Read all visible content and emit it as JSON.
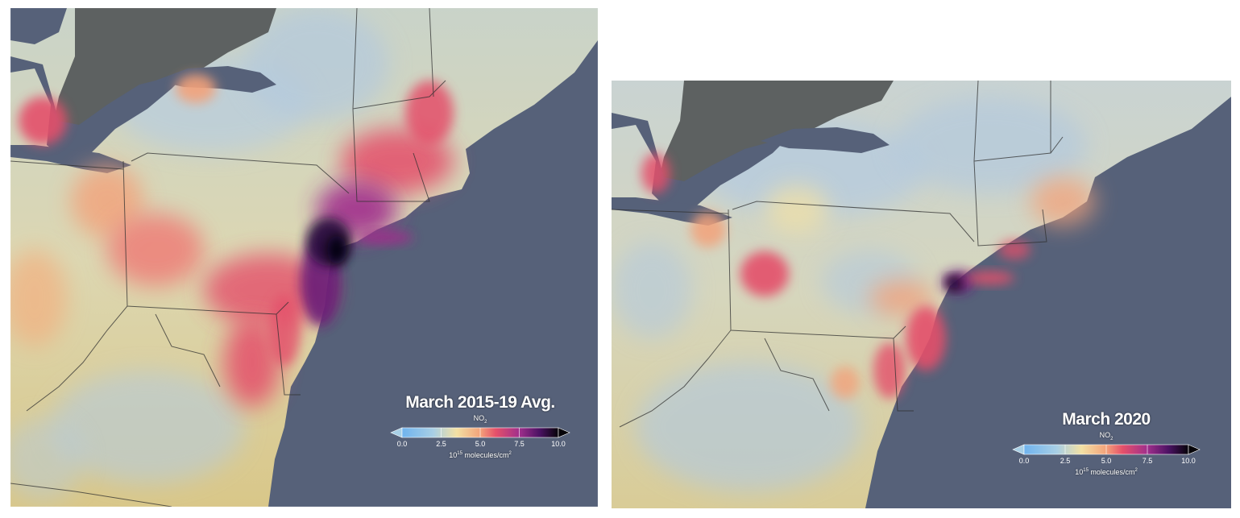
{
  "panels": [
    {
      "id": "left",
      "title": "March 2015-19 Avg.",
      "variable": "NO",
      "variable_subscript": "2",
      "units_prefix": "10",
      "units_exponent": "15",
      "units_suffix": " molecules/cm",
      "units_suffix_exponent": "2",
      "colorbar_ticks": [
        "0.0",
        "2.5",
        "5.0",
        "7.5",
        "10.0"
      ]
    },
    {
      "id": "right",
      "title": "March 2020",
      "variable": "NO",
      "variable_subscript": "2",
      "units_prefix": "10",
      "units_exponent": "15",
      "units_suffix": " molecules/cm",
      "units_suffix_exponent": "2",
      "colorbar_ticks": [
        "0.0",
        "2.5",
        "5.0",
        "7.5",
        "10.0"
      ]
    }
  ],
  "colors": {
    "ocean": "#566179",
    "land_low": "#d8d6b8",
    "canada_land": "#585c5c",
    "scale": [
      "#6fb3ee",
      "#a8cfe5",
      "#f3e1a4",
      "#f3a27a",
      "#e4506a",
      "#a02f8c",
      "#4b1263",
      "#050308"
    ]
  },
  "colorbar_range": [
    0,
    10
  ]
}
